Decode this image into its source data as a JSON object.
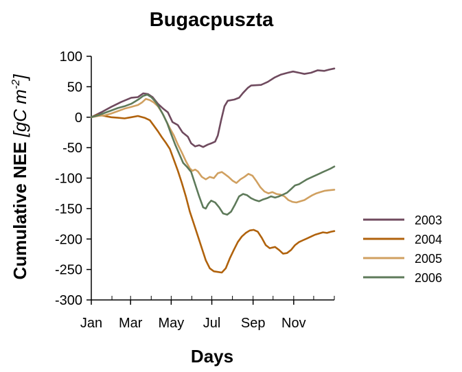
{
  "chart_data": {
    "type": "line",
    "title": "Bugacpuszta",
    "xlabel": "Days",
    "ylabel_main": "Cumulative NEE ",
    "ylabel_unit": "[gC m",
    "ylabel_sup": "-2",
    "ylabel_close": "]",
    "xlim": [
      0,
      365
    ],
    "ylim": [
      -300,
      100
    ],
    "y_ticks": [
      100,
      50,
      0,
      -50,
      -100,
      -150,
      -200,
      -250,
      -300
    ],
    "y_tick_labels": [
      "100",
      "50",
      "0",
      "-50",
      "-100",
      "-150",
      "-200",
      "-250",
      "-300"
    ],
    "x_month_labels": [
      {
        "day": 0,
        "label": "Jan"
      },
      {
        "day": 59,
        "label": "Mar"
      },
      {
        "day": 120,
        "label": "May"
      },
      {
        "day": 181,
        "label": "Jul"
      },
      {
        "day": 243,
        "label": "Sep"
      },
      {
        "day": 304,
        "label": "Nov"
      }
    ],
    "x_minor_ticks": [
      0,
      31,
      59,
      90,
      120,
      151,
      181,
      212,
      243,
      273,
      304,
      334,
      365
    ],
    "grid": false,
    "legend_position": "right",
    "series": [
      {
        "name": "2003",
        "color": "#6f4a5e",
        "points": [
          [
            0,
            0
          ],
          [
            15,
            8
          ],
          [
            30,
            17
          ],
          [
            45,
            25
          ],
          [
            60,
            32
          ],
          [
            70,
            33
          ],
          [
            78,
            39
          ],
          [
            85,
            38
          ],
          [
            92,
            33
          ],
          [
            100,
            22
          ],
          [
            108,
            14
          ],
          [
            115,
            8
          ],
          [
            122,
            -8
          ],
          [
            130,
            -13
          ],
          [
            137,
            -25
          ],
          [
            145,
            -32
          ],
          [
            150,
            -43
          ],
          [
            156,
            -48
          ],
          [
            162,
            -46
          ],
          [
            168,
            -49
          ],
          [
            175,
            -45
          ],
          [
            180,
            -43
          ],
          [
            186,
            -40
          ],
          [
            190,
            -30
          ],
          [
            195,
            -5
          ],
          [
            200,
            18
          ],
          [
            205,
            27
          ],
          [
            215,
            29
          ],
          [
            222,
            32
          ],
          [
            228,
            40
          ],
          [
            235,
            48
          ],
          [
            240,
            52
          ],
          [
            255,
            53
          ],
          [
            265,
            58
          ],
          [
            275,
            65
          ],
          [
            285,
            70
          ],
          [
            295,
            73
          ],
          [
            303,
            75
          ],
          [
            312,
            73
          ],
          [
            320,
            71
          ],
          [
            330,
            73
          ],
          [
            340,
            77
          ],
          [
            350,
            76
          ],
          [
            357,
            78
          ],
          [
            365,
            80
          ]
        ]
      },
      {
        "name": "2004",
        "color": "#b0620c",
        "points": [
          [
            0,
            0
          ],
          [
            10,
            4
          ],
          [
            20,
            2
          ],
          [
            30,
            0
          ],
          [
            40,
            -1
          ],
          [
            50,
            -2
          ],
          [
            60,
            0
          ],
          [
            70,
            2
          ],
          [
            80,
            -1
          ],
          [
            88,
            -5
          ],
          [
            94,
            -14
          ],
          [
            100,
            -23
          ],
          [
            106,
            -33
          ],
          [
            112,
            -42
          ],
          [
            118,
            -52
          ],
          [
            124,
            -70
          ],
          [
            130,
            -88
          ],
          [
            136,
            -108
          ],
          [
            142,
            -130
          ],
          [
            148,
            -155
          ],
          [
            154,
            -175
          ],
          [
            160,
            -195
          ],
          [
            166,
            -215
          ],
          [
            172,
            -235
          ],
          [
            178,
            -248
          ],
          [
            184,
            -253
          ],
          [
            190,
            -254
          ],
          [
            196,
            -255
          ],
          [
            202,
            -248
          ],
          [
            208,
            -232
          ],
          [
            214,
            -218
          ],
          [
            220,
            -205
          ],
          [
            226,
            -196
          ],
          [
            232,
            -190
          ],
          [
            238,
            -186
          ],
          [
            244,
            -185
          ],
          [
            250,
            -188
          ],
          [
            256,
            -198
          ],
          [
            262,
            -210
          ],
          [
            268,
            -215
          ],
          [
            276,
            -213
          ],
          [
            282,
            -218
          ],
          [
            288,
            -224
          ],
          [
            294,
            -223
          ],
          [
            300,
            -218
          ],
          [
            306,
            -210
          ],
          [
            312,
            -205
          ],
          [
            318,
            -202
          ],
          [
            324,
            -199
          ],
          [
            330,
            -196
          ],
          [
            336,
            -193
          ],
          [
            342,
            -191
          ],
          [
            348,
            -189
          ],
          [
            354,
            -190
          ],
          [
            360,
            -188
          ],
          [
            365,
            -187
          ]
        ]
      },
      {
        "name": "2005",
        "color": "#d0a060",
        "points": [
          [
            0,
            0
          ],
          [
            10,
            2
          ],
          [
            20,
            3
          ],
          [
            30,
            6
          ],
          [
            40,
            10
          ],
          [
            50,
            14
          ],
          [
            60,
            17
          ],
          [
            70,
            20
          ],
          [
            76,
            24
          ],
          [
            82,
            30
          ],
          [
            88,
            28
          ],
          [
            94,
            24
          ],
          [
            100,
            18
          ],
          [
            106,
            8
          ],
          [
            112,
            -5
          ],
          [
            118,
            -18
          ],
          [
            124,
            -30
          ],
          [
            130,
            -45
          ],
          [
            136,
            -58
          ],
          [
            142,
            -72
          ],
          [
            148,
            -84
          ],
          [
            152,
            -88
          ],
          [
            156,
            -86
          ],
          [
            160,
            -89
          ],
          [
            166,
            -98
          ],
          [
            172,
            -102
          ],
          [
            178,
            -98
          ],
          [
            184,
            -100
          ],
          [
            190,
            -92
          ],
          [
            196,
            -90
          ],
          [
            200,
            -93
          ],
          [
            206,
            -98
          ],
          [
            212,
            -104
          ],
          [
            218,
            -108
          ],
          [
            224,
            -102
          ],
          [
            230,
            -98
          ],
          [
            236,
            -93
          ],
          [
            242,
            -96
          ],
          [
            248,
            -105
          ],
          [
            254,
            -115
          ],
          [
            260,
            -122
          ],
          [
            266,
            -125
          ],
          [
            272,
            -123
          ],
          [
            278,
            -126
          ],
          [
            284,
            -127
          ],
          [
            290,
            -130
          ],
          [
            296,
            -136
          ],
          [
            302,
            -139
          ],
          [
            308,
            -140
          ],
          [
            314,
            -138
          ],
          [
            320,
            -136
          ],
          [
            326,
            -132
          ],
          [
            332,
            -128
          ],
          [
            338,
            -125
          ],
          [
            344,
            -123
          ],
          [
            350,
            -121
          ],
          [
            356,
            -120
          ],
          [
            365,
            -119
          ]
        ]
      },
      {
        "name": "2006",
        "color": "#5e7a5a",
        "points": [
          [
            0,
            0
          ],
          [
            10,
            3
          ],
          [
            20,
            7
          ],
          [
            30,
            11
          ],
          [
            40,
            15
          ],
          [
            50,
            18
          ],
          [
            60,
            22
          ],
          [
            66,
            26
          ],
          [
            72,
            30
          ],
          [
            78,
            35
          ],
          [
            84,
            37
          ],
          [
            90,
            33
          ],
          [
            96,
            26
          ],
          [
            102,
            16
          ],
          [
            108,
            4
          ],
          [
            114,
            -10
          ],
          [
            120,
            -28
          ],
          [
            126,
            -45
          ],
          [
            132,
            -60
          ],
          [
            138,
            -75
          ],
          [
            144,
            -82
          ],
          [
            150,
            -90
          ],
          [
            156,
            -110
          ],
          [
            162,
            -130
          ],
          [
            168,
            -148
          ],
          [
            172,
            -150
          ],
          [
            176,
            -142
          ],
          [
            180,
            -137
          ],
          [
            186,
            -140
          ],
          [
            192,
            -148
          ],
          [
            198,
            -158
          ],
          [
            204,
            -160
          ],
          [
            210,
            -155
          ],
          [
            216,
            -143
          ],
          [
            222,
            -130
          ],
          [
            228,
            -126
          ],
          [
            234,
            -128
          ],
          [
            240,
            -133
          ],
          [
            246,
            -136
          ],
          [
            252,
            -138
          ],
          [
            258,
            -135
          ],
          [
            264,
            -133
          ],
          [
            270,
            -130
          ],
          [
            276,
            -132
          ],
          [
            282,
            -130
          ],
          [
            288,
            -127
          ],
          [
            294,
            -124
          ],
          [
            300,
            -118
          ],
          [
            306,
            -112
          ],
          [
            312,
            -110
          ],
          [
            318,
            -106
          ],
          [
            324,
            -102
          ],
          [
            330,
            -99
          ],
          [
            336,
            -96
          ],
          [
            342,
            -93
          ],
          [
            348,
            -90
          ],
          [
            354,
            -87
          ],
          [
            360,
            -84
          ],
          [
            365,
            -81
          ]
        ]
      }
    ]
  }
}
